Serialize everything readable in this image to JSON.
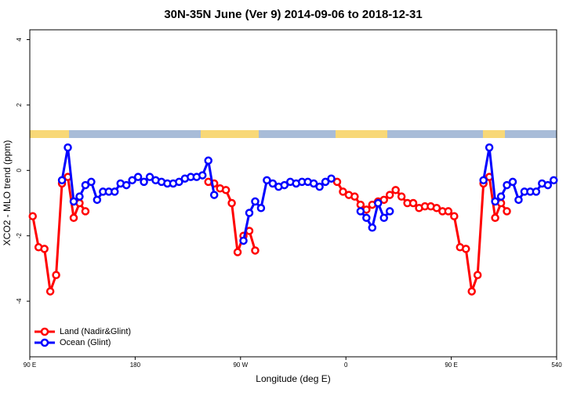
{
  "chart_data": {
    "type": "line",
    "title": "30N-35N June (Ver 9)   2014-09-06 to 2018-12-31",
    "xlabel": "Longitude (deg E)",
    "ylabel": "XCO2 - MLO trend (ppm)",
    "x": [
      92.5,
      97.5,
      102.5,
      107.5,
      112.5,
      117.5,
      122.5,
      127.5,
      132.5,
      137.5,
      142.5,
      147.5,
      152.5,
      157.5,
      162.5,
      167.5,
      172.5,
      177.5,
      182.5,
      187.5,
      192.5,
      197.5,
      202.5,
      207.5,
      212.5,
      217.5,
      222.5,
      227.5,
      232.5,
      237.5,
      242.5,
      247.5,
      252.5,
      257.5,
      262.5,
      267.5,
      272.5,
      277.5,
      282.5,
      287.5,
      292.5,
      297.5,
      302.5,
      307.5,
      312.5,
      317.5,
      322.5,
      327.5,
      332.5,
      337.5,
      342.5,
      347.5,
      352.5,
      357.5,
      362.5,
      367.5,
      372.5,
      377.5,
      382.5,
      387.5,
      392.5,
      397.5,
      402.5,
      407.5,
      412.5,
      417.5,
      422.5,
      427.5,
      432.5,
      437.5,
      442.5,
      447.5,
      452.5,
      457.5,
      462.5,
      467.5,
      472.5,
      477.5,
      482.5,
      487.5,
      492.5,
      497.5,
      502.5,
      507.5,
      512.5,
      517.5,
      522.5,
      527.5,
      532.5,
      537.5
    ],
    "series": [
      {
        "name": "Land (Nadir&Glint)",
        "color": "#ff0000",
        "values": [
          -1.4,
          -2.35,
          -2.4,
          -3.7,
          -3.2,
          -0.4,
          -0.2,
          -1.45,
          -1.0,
          -1.25,
          null,
          null,
          null,
          null,
          null,
          null,
          null,
          null,
          null,
          null,
          null,
          null,
          null,
          null,
          null,
          null,
          null,
          null,
          null,
          null,
          -0.35,
          -0.4,
          -0.55,
          -0.6,
          -1.0,
          -2.5,
          -2.0,
          -1.85,
          -2.45,
          null,
          null,
          null,
          null,
          null,
          null,
          null,
          null,
          null,
          null,
          null,
          null,
          null,
          -0.35,
          -0.65,
          -0.75,
          -0.8,
          -1.05,
          -1.2,
          -1.05,
          -0.95,
          -0.9,
          -0.75,
          -0.6,
          -0.8,
          -1.0,
          -1.0,
          -1.15,
          -1.1,
          -1.1,
          -1.15,
          -1.25,
          -1.25,
          -1.4,
          -2.35,
          -2.4,
          -3.7,
          -3.2,
          -0.4,
          -0.2,
          -1.45,
          -1.0,
          -1.25,
          null,
          null,
          null,
          null,
          null,
          null,
          null,
          null
        ]
      },
      {
        "name": "Ocean (Glint)",
        "color": "#0000ff",
        "values": [
          null,
          null,
          null,
          null,
          null,
          -0.3,
          0.7,
          -0.95,
          -0.8,
          -0.45,
          -0.35,
          -0.9,
          -0.65,
          -0.65,
          -0.65,
          -0.4,
          -0.45,
          -0.3,
          -0.2,
          -0.35,
          -0.2,
          -0.3,
          -0.35,
          -0.4,
          -0.4,
          -0.35,
          -0.25,
          -0.2,
          -0.2,
          -0.15,
          0.3,
          -0.75,
          null,
          null,
          null,
          null,
          -2.15,
          -1.3,
          -0.95,
          -1.15,
          -0.3,
          -0.4,
          -0.5,
          -0.45,
          -0.35,
          -0.4,
          -0.35,
          -0.35,
          -0.4,
          -0.5,
          -0.35,
          -0.25,
          null,
          null,
          null,
          null,
          -1.25,
          -1.45,
          -1.75,
          -1.0,
          -1.45,
          -1.25,
          null,
          null,
          null,
          null,
          null,
          null,
          null,
          null,
          null,
          null,
          null,
          null,
          null,
          null,
          null,
          -0.3,
          0.7,
          -0.95,
          -0.8,
          -0.45,
          -0.35,
          -0.9,
          -0.65,
          -0.65,
          -0.65,
          -0.4,
          -0.45,
          -0.3
        ]
      }
    ],
    "xlim": [
      90,
      540
    ],
    "xticks": [
      {
        "value": 90,
        "label": "90 E"
      },
      180,
      {
        "value": 270,
        "label": "90 W"
      },
      {
        "value": 360,
        "label": "0"
      },
      {
        "value": 450,
        "label": "90 E"
      },
      540
    ],
    "ylim": [
      -5.7,
      4.3
    ],
    "yticks": [
      -4,
      -2,
      0,
      2,
      4
    ],
    "legend": "bottom-left"
  }
}
